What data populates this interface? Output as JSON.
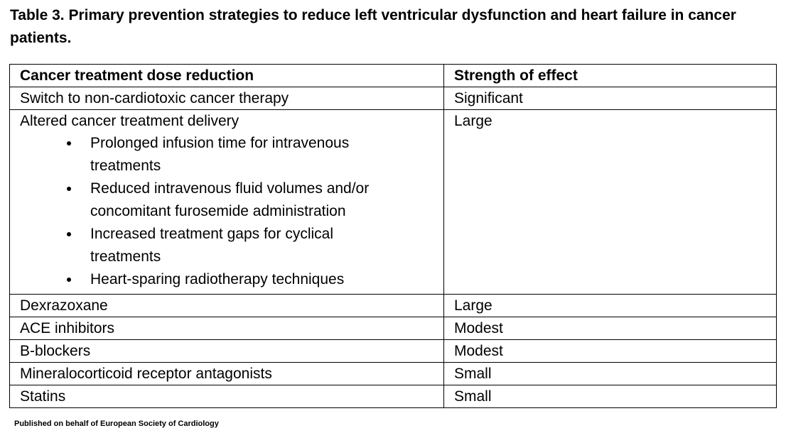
{
  "title": "Table 3. Primary prevention strategies to reduce left ventricular dysfunction and heart failure in cancer patients.",
  "table": {
    "header": [
      "Cancer treatment dose reduction",
      "Strength of effect"
    ],
    "rows": [
      {
        "strategy": "Switch to non-cardiotoxic cancer therapy",
        "effect": "Significant"
      },
      {
        "strategy": "Altered cancer treatment delivery",
        "bullets": [
          "Prolonged infusion time for intravenous treatments",
          "Reduced intravenous fluid volumes and/or concomitant furosemide administration",
          "Increased treatment gaps for cyclical treatments",
          "Heart-sparing radiotherapy techniques"
        ],
        "effect": "Large"
      },
      {
        "strategy": "Dexrazoxane",
        "effect": "Large"
      },
      {
        "strategy": "ACE inhibitors",
        "effect": "Modest"
      },
      {
        "strategy": "B-blockers",
        "effect": "Modest"
      },
      {
        "strategy": "Mineralocorticoid receptor antagonists",
        "effect": "Small"
      },
      {
        "strategy": "Statins",
        "effect": "Small"
      }
    ]
  },
  "footer": "Published on behalf of European Society of Cardiology"
}
